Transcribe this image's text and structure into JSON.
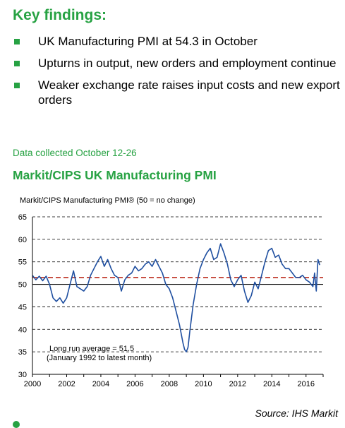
{
  "key_findings": {
    "heading": "Key findings:",
    "items": [
      "UK Manufacturing PMI at 54.3 in October",
      "Upturns in output, new orders and employment continue",
      "Weaker exchange rate raises input costs and new export orders"
    ]
  },
  "data_collected": "Data collected October 12-26",
  "source": "Source: IHS Markit",
  "colors": {
    "accent": "#27a243",
    "series": "#1f4fa0",
    "average_line": "#c0392b"
  },
  "chart_data": {
    "type": "line",
    "title": "Markit/CIPS UK Manufacturing PMI",
    "ylabel": "Markit/CIPS Manufacturing PMI® (50 = no change)",
    "xlim": [
      2000,
      2017
    ],
    "ylim": [
      30,
      65
    ],
    "yticks": [
      "30",
      "35",
      "40",
      "45",
      "50",
      "55",
      "60",
      "65"
    ],
    "xticks": [
      "2000",
      "2002",
      "2004",
      "2006",
      "2008",
      "2010",
      "2012",
      "2014",
      "2016"
    ],
    "grid": true,
    "reference_value": 51.5,
    "annotation": [
      "Long run average = 51.5",
      "(January 1992 to latest month)"
    ],
    "series": [
      {
        "x": [
          2000.0,
          2000.2,
          2000.4,
          2000.6,
          2000.8,
          2001.0,
          2001.2,
          2001.4,
          2001.6,
          2001.8,
          2002.0,
          2002.2,
          2002.4,
          2002.6,
          2002.8,
          2003.0,
          2003.2,
          2003.4,
          2003.6,
          2003.8,
          2004.0,
          2004.2,
          2004.4,
          2004.6,
          2004.8,
          2005.0,
          2005.2,
          2005.4,
          2005.6,
          2005.8,
          2006.0,
          2006.2,
          2006.4,
          2006.6,
          2006.8,
          2007.0,
          2007.2,
          2007.4,
          2007.6,
          2007.8,
          2008.0,
          2008.2,
          2008.4,
          2008.6,
          2008.8,
          2008.9,
          2009.0,
          2009.1,
          2009.2,
          2009.4,
          2009.6,
          2009.8,
          2010.0,
          2010.2,
          2010.4,
          2010.6,
          2010.8,
          2011.0,
          2011.2,
          2011.4,
          2011.6,
          2011.8,
          2012.0,
          2012.2,
          2012.4,
          2012.6,
          2012.8,
          2013.0,
          2013.2,
          2013.4,
          2013.6,
          2013.8,
          2014.0,
          2014.2,
          2014.4,
          2014.6,
          2014.8,
          2015.0,
          2015.2,
          2015.4,
          2015.6,
          2015.8,
          2016.0,
          2016.2,
          2016.4,
          2016.5,
          2016.6,
          2016.7,
          2016.8
        ],
        "values": [
          52.0,
          51.0,
          51.8,
          50.8,
          51.8,
          50.0,
          47.0,
          46.2,
          47.0,
          45.8,
          47.0,
          50.0,
          53.0,
          49.5,
          49.0,
          48.5,
          49.5,
          52.0,
          53.5,
          55.0,
          56.2,
          54.0,
          55.5,
          53.5,
          52.0,
          51.5,
          48.5,
          51.0,
          52.0,
          52.5,
          54.0,
          53.0,
          53.5,
          54.5,
          55.0,
          54.0,
          55.5,
          54.0,
          52.5,
          50.0,
          49.0,
          47.0,
          44.0,
          41.0,
          37.0,
          35.5,
          35.0,
          36.0,
          39.5,
          45.5,
          50.0,
          53.5,
          55.5,
          57.0,
          58.0,
          55.5,
          56.0,
          59.0,
          57.0,
          54.5,
          51.0,
          49.5,
          51.0,
          52.0,
          48.5,
          46.0,
          47.5,
          50.5,
          49.0,
          52.0,
          55.0,
          57.5,
          58.0,
          56.0,
          56.5,
          54.5,
          53.5,
          53.5,
          52.5,
          51.5,
          51.5,
          52.0,
          51.0,
          50.5,
          49.5,
          52.5,
          48.5,
          55.5,
          54.3
        ]
      }
    ]
  }
}
